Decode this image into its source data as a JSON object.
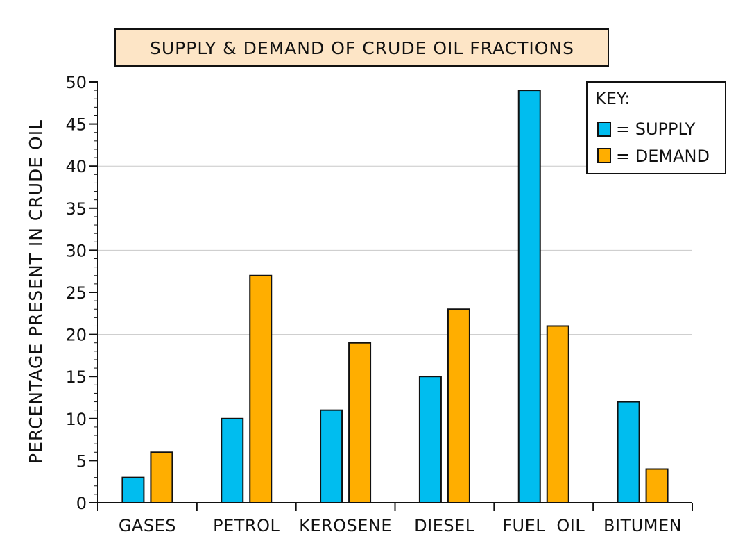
{
  "chart_data": {
    "type": "bar",
    "title": "SUPPLY & DEMAND OF  CRUDE OIL FRACTIONS",
    "xlabel": "",
    "ylabel": "PERCENTAGE PRESENT  IN CRUDE OIL",
    "ylim": [
      0,
      50
    ],
    "yticks": [
      "0",
      "5",
      "10",
      "15",
      "20",
      "25",
      "30",
      "35",
      "40",
      "45",
      "50"
    ],
    "grid": "horizontal lines at 20, 30, 40",
    "categories": [
      "GASES",
      "PETROL",
      "KEROSENE",
      "DIESEL",
      "FUEL  OIL",
      "BITUMEN"
    ],
    "series": [
      {
        "name": "SUPPLY",
        "color": "#00bdef",
        "values": [
          3,
          10,
          11,
          15,
          49,
          12
        ]
      },
      {
        "name": "DEMAND",
        "color": "#ffae00",
        "values": [
          6,
          27,
          19,
          23,
          21,
          4
        ]
      }
    ],
    "legend": {
      "position": "top-right",
      "title": "KEY:",
      "entries": [
        "= SUPPLY",
        "= DEMAND"
      ]
    },
    "title_box_color": "#fde5c6"
  }
}
